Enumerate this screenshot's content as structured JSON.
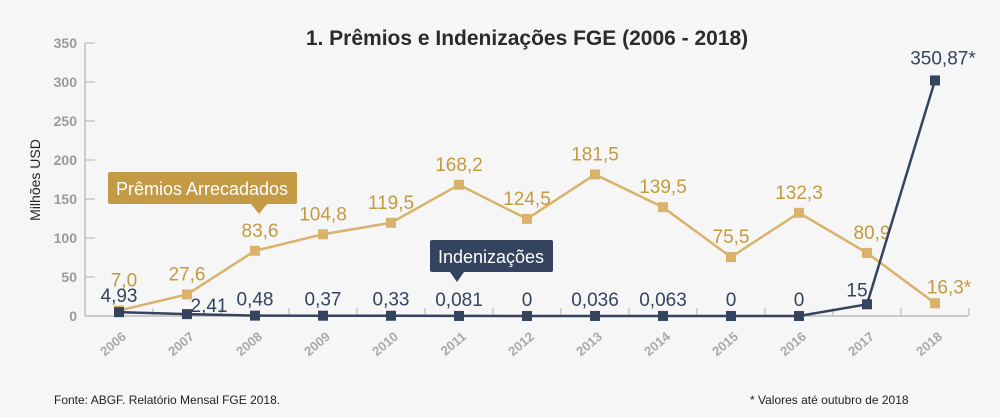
{
  "chart_data": {
    "type": "line",
    "title": "1. Prêmios e Indenizações FGE (2006 - 2018)",
    "ylabel": "Milhões USD",
    "xlabel": "",
    "ylim": [
      0,
      350
    ],
    "yticks": [
      "0",
      "50",
      "100",
      "150",
      "200",
      "250",
      "300",
      "350"
    ],
    "categories": [
      "2006",
      "2007",
      "2008",
      "2009",
      "2010",
      "2011",
      "2012",
      "2013",
      "2014",
      "2015",
      "2016",
      "2017",
      "2018"
    ],
    "grid": false,
    "series": [
      {
        "name": "Prêmios Arrecadados",
        "color": "#d9b26b",
        "label_color": "#c49a3e",
        "values": [
          7.0,
          27.6,
          83.6,
          104.8,
          119.5,
          168.2,
          124.5,
          181.5,
          139.5,
          75.5,
          132.3,
          80.9,
          16.3
        ],
        "labels": [
          "7,0",
          "27,6",
          "83,6",
          "104,8",
          "119,5",
          "168,2",
          "124,5",
          "181,5",
          "139,5",
          "75,5",
          "132,3",
          "80,9",
          "16,3*"
        ]
      },
      {
        "name": "Indenizações",
        "color": "#34435e",
        "label_color": "#34435e",
        "values": [
          4.93,
          2.41,
          0.48,
          0.37,
          0.33,
          0.081,
          0,
          0.036,
          0.063,
          0,
          0,
          15,
          350.87
        ],
        "labels": [
          "4,93",
          "2,41",
          "0,48",
          "0,37",
          "0,33",
          "0,081",
          "0",
          "0,036",
          "0,063",
          "0",
          "0",
          "15",
          "350,87*"
        ]
      }
    ],
    "legend_callouts": {
      "premios": "Prêmios Arrecadados",
      "indenizacoes": "Indenizações"
    }
  },
  "footer": {
    "source": "Fonte: ABGF. Relatório Mensal FGE 2018.",
    "note": "* Valores até outubro de 2018"
  },
  "colors": {
    "gold_box": "#c49a45",
    "navy_box": "#34435e",
    "axis": "#b0b0b0"
  }
}
